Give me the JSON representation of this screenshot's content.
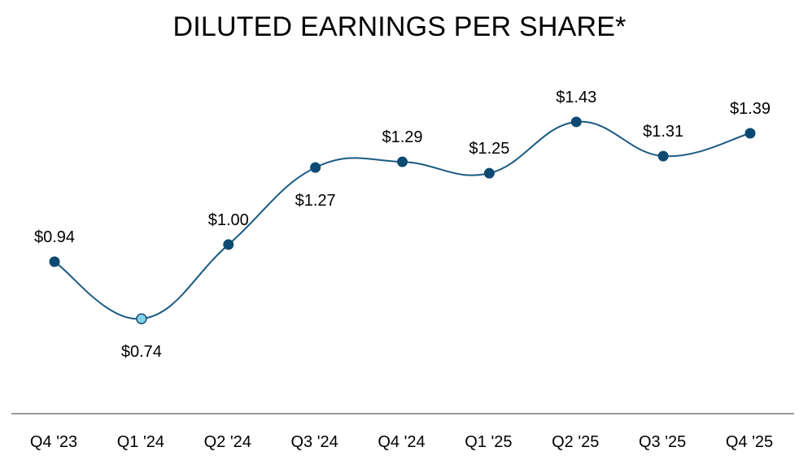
{
  "chart_data": {
    "type": "line",
    "title": "DILUTED EARNINGS PER SHARE*",
    "xlabel": "",
    "ylabel": "",
    "categories": [
      "Q4 '23",
      "Q1 '24",
      "Q2 '24",
      "Q3 '24",
      "Q4 '24",
      "Q1 '25",
      "Q2 '25",
      "Q3 '25",
      "Q4 '25"
    ],
    "series": [
      {
        "values": [
          0.94,
          0.74,
          1.0,
          1.27,
          1.29,
          1.25,
          1.43,
          1.31,
          1.39
        ],
        "data_labels": [
          "$0.94",
          "$0.74",
          "$1.00",
          "$1.27",
          "$1.29",
          "$1.25",
          "$1.43",
          "$1.31",
          "$1.39"
        ],
        "label_positions": [
          "above",
          "below",
          "above",
          "below",
          "above",
          "above",
          "above",
          "above",
          "above"
        ],
        "highlight_index": 1
      }
    ],
    "grid": false,
    "legend": "none",
    "line_style": "smooth",
    "colors": {
      "line": "#1b5a82",
      "marker": "#0d4a73",
      "highlight_marker": "#7fd3e8",
      "axis": "#999999"
    }
  }
}
